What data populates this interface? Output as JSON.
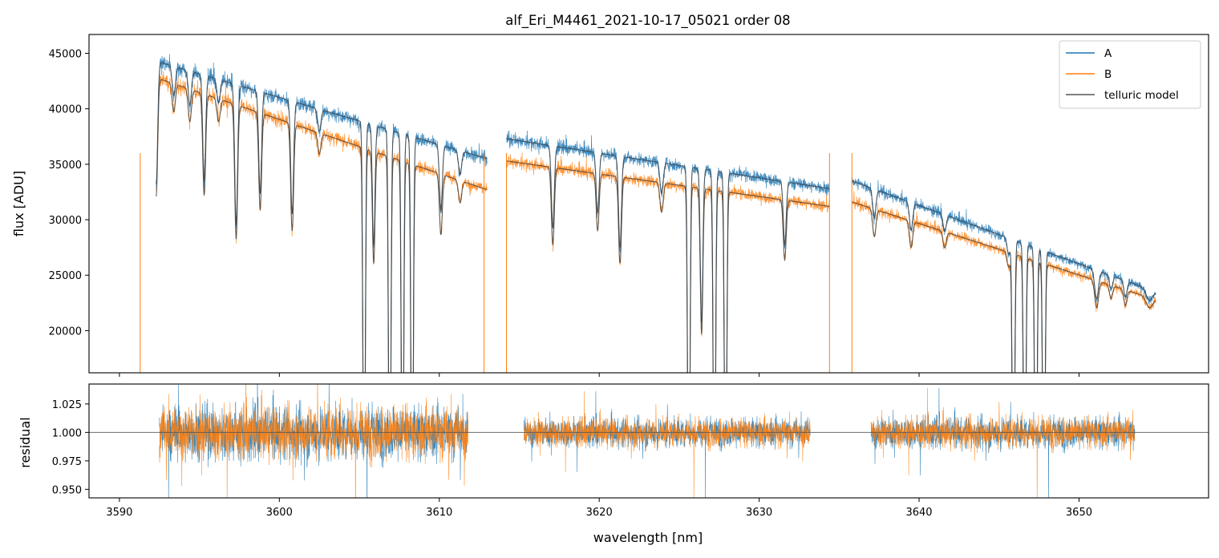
{
  "chart_data": {
    "type": "line",
    "title": "alf_Eri_M4461_2021-10-17_05021  order 08",
    "xlabel": "wavelength [nm]",
    "xlim": [
      3588.1,
      3658.1
    ],
    "x_ticks": [
      3590,
      3600,
      3610,
      3620,
      3630,
      3640,
      3650
    ],
    "colors": {
      "A": "#1f77b4",
      "B": "#ff7f0e",
      "model": "#404040"
    },
    "top_panel": {
      "ylabel": "flux [ADU]",
      "ylim": [
        16200,
        46700
      ],
      "y_ticks": [
        20000,
        25000,
        30000,
        35000,
        40000,
        45000
      ],
      "legend": {
        "position": "top-right",
        "entries": [
          "A",
          "B",
          "telluric model"
        ]
      },
      "segments": [
        {
          "x0": 3592.3,
          "x1": 3613.0,
          "A_start": 44300,
          "A_end": 35500,
          "B_start": 42800,
          "B_end": 32700
        },
        {
          "x0": 3614.2,
          "x1": 3634.4,
          "A_start": 37300,
          "A_end": 32800,
          "B_start": 35300,
          "B_end": 31200
        },
        {
          "x0": 3635.8,
          "x1": 3654.8,
          "A_start": 33500,
          "A_end": 23500,
          "B_start": 31600,
          "B_end": 22800
        }
      ],
      "absorption_lines": [
        {
          "center": 3592.3,
          "depth_frac": 0.25,
          "width": 0.09
        },
        {
          "center": 3593.4,
          "depth_frac": 0.06,
          "width": 0.1
        },
        {
          "center": 3594.4,
          "depth_frac": 0.07,
          "width": 0.1
        },
        {
          "center": 3595.3,
          "depth_frac": 0.22,
          "width": 0.09
        },
        {
          "center": 3596.2,
          "depth_frac": 0.05,
          "width": 0.1
        },
        {
          "center": 3597.3,
          "depth_frac": 0.3,
          "width": 0.09
        },
        {
          "center": 3598.8,
          "depth_frac": 0.22,
          "width": 0.09
        },
        {
          "center": 3600.8,
          "depth_frac": 0.25,
          "width": 0.09
        },
        {
          "center": 3602.5,
          "depth_frac": 0.05,
          "width": 0.1
        },
        {
          "center": 3605.3,
          "depth_frac": 1.0,
          "width": 0.07
        },
        {
          "center": 3605.9,
          "depth_frac": 0.28,
          "width": 0.08
        },
        {
          "center": 3606.9,
          "depth_frac": 1.0,
          "width": 0.07
        },
        {
          "center": 3607.7,
          "depth_frac": 1.0,
          "width": 0.07
        },
        {
          "center": 3608.3,
          "depth_frac": 1.0,
          "width": 0.07
        },
        {
          "center": 3610.1,
          "depth_frac": 0.16,
          "width": 0.09
        },
        {
          "center": 3611.3,
          "depth_frac": 0.06,
          "width": 0.1
        },
        {
          "center": 3617.1,
          "depth_frac": 0.2,
          "width": 0.09
        },
        {
          "center": 3619.9,
          "depth_frac": 0.15,
          "width": 0.09
        },
        {
          "center": 3621.3,
          "depth_frac": 0.23,
          "width": 0.09
        },
        {
          "center": 3623.9,
          "depth_frac": 0.08,
          "width": 0.1
        },
        {
          "center": 3625.6,
          "depth_frac": 1.0,
          "width": 0.07
        },
        {
          "center": 3626.4,
          "depth_frac": 0.4,
          "width": 0.08
        },
        {
          "center": 3627.2,
          "depth_frac": 1.0,
          "width": 0.07
        },
        {
          "center": 3627.9,
          "depth_frac": 1.0,
          "width": 0.07
        },
        {
          "center": 3631.6,
          "depth_frac": 0.17,
          "width": 0.09
        },
        {
          "center": 3637.2,
          "depth_frac": 0.08,
          "width": 0.1
        },
        {
          "center": 3639.5,
          "depth_frac": 0.08,
          "width": 0.1
        },
        {
          "center": 3641.6,
          "depth_frac": 0.05,
          "width": 0.1
        },
        {
          "center": 3645.6,
          "depth_frac": 0.05,
          "width": 0.1
        },
        {
          "center": 3645.9,
          "depth_frac": 1.0,
          "width": 0.07
        },
        {
          "center": 3646.6,
          "depth_frac": 1.0,
          "width": 0.07
        },
        {
          "center": 3647.3,
          "depth_frac": 1.0,
          "width": 0.07
        },
        {
          "center": 3647.8,
          "depth_frac": 1.0,
          "width": 0.07
        },
        {
          "center": 3651.1,
          "depth_frac": 0.1,
          "width": 0.12
        },
        {
          "center": 3652.0,
          "depth_frac": 0.05,
          "width": 0.1
        },
        {
          "center": 3652.9,
          "depth_frac": 0.06,
          "width": 0.1
        },
        {
          "center": 3654.4,
          "depth_frac": 0.04,
          "width": 0.2
        }
      ],
      "edge_spikes": [
        3591.3,
        3612.8,
        3614.2,
        3634.4,
        3635.8
      ]
    },
    "bottom_panel": {
      "ylabel": "residual",
      "ylim": [
        0.9425,
        1.0425
      ],
      "y_ticks": [
        0.95,
        0.975,
        1.0,
        1.025
      ],
      "y_tick_labels": [
        "0.950",
        "0.975",
        "1.000",
        "1.025"
      ],
      "reference_line": 1.0,
      "segments": [
        {
          "x0": 3592.5,
          "x1": 3611.8,
          "noise_sigma": 0.022
        },
        {
          "x0": 3615.3,
          "x1": 3633.2,
          "noise_sigma": 0.012
        },
        {
          "x0": 3637.0,
          "x1": 3653.5,
          "noise_sigma": 0.013
        }
      ]
    }
  }
}
